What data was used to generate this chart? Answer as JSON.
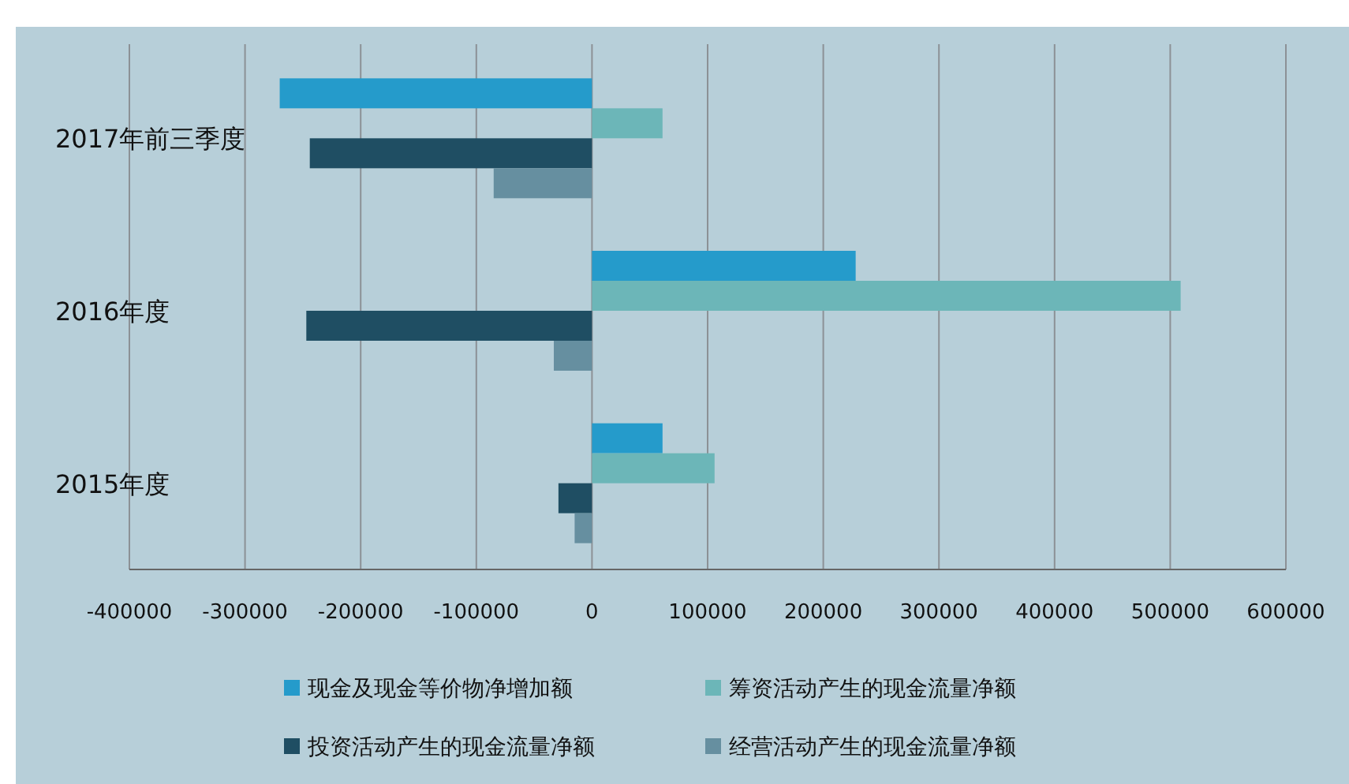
{
  "chart_data": {
    "type": "bar",
    "orientation": "horizontal",
    "categories": [
      "2017年前三季度",
      "2016年度",
      "2015年度"
    ],
    "series": [
      {
        "name": "现金及现金等价物净增加额",
        "color": "#259bcb",
        "values": [
          -270000,
          228000,
          61000
        ]
      },
      {
        "name": "筹资活动产生的现金流量净额",
        "color": "#6cb6b8",
        "values": [
          61000,
          509000,
          106000
        ]
      },
      {
        "name": "投资活动产生的现金流量净额",
        "color": "#1f4e63",
        "values": [
          -244000,
          -247000,
          -29000
        ]
      },
      {
        "name": "经营活动产生的现金流量净额",
        "color": "#668fa0",
        "values": [
          -85000,
          -33000,
          -15000
        ]
      }
    ],
    "xlim": [
      -400000,
      600000
    ],
    "xticks": [
      -400000,
      -300000,
      -200000,
      -100000,
      0,
      100000,
      200000,
      300000,
      400000,
      500000,
      600000
    ],
    "grid": "x",
    "legend": "bottom"
  }
}
